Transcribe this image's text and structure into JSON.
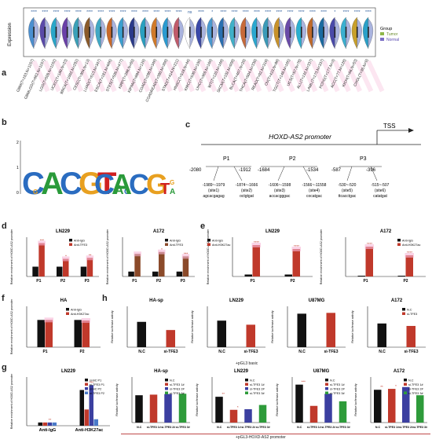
{
  "panel_labels": [
    "a",
    "b",
    "c",
    "d",
    "e",
    "f",
    "g",
    "h"
  ],
  "panel_a": {
    "ylabel": "Expression",
    "legend_title": "Group",
    "legend_items": [
      {
        "label": "Tumor",
        "color": "#8fb84a"
      },
      {
        "label": "Normal",
        "color": "#7b6fc6"
      }
    ],
    "categories": [
      "GBM(T=153,N=1157)",
      "GBMLGG(T=662,N=1157)",
      "LGG(T=509,N=1152)",
      "UCEC(T=180,N=23)",
      "BRCA(T=1092,N=292)",
      "CESC(T=304,N=13)",
      "LUAD(T=513,N=347)",
      "ESCA(T=181,N=666)",
      "STES(T=595,N=477)",
      "KIRP(T=288,N=60)",
      "KIPAN(T=884,N=129)",
      "COAD(T=288,N=349)",
      "COADREAD(T=380,N=359)",
      "STAD(T=414,N=211)",
      "HNSC(T=518,N=44)",
      "KIRC(T=530,N=100)",
      "LIHC(T=369,N=160)",
      "WT(T=120,N=168)",
      "SKCM(T=102,N=558)",
      "BLCA(T=407,N=28)",
      "THCA(T=504,N=338)",
      "READ(T=92,N=318)",
      "OV(T=419,N=88)",
      "TGCT(T=148,N=165)",
      "UCS(T=57,N=78)",
      "ALL(T=132,N=337)",
      "LAML(T=173,N=337)",
      "PCPG(T=177,N=3)",
      "ACC(T=77,N=128)",
      "KICH(T=66,N=53)",
      "CHOL(T=36,N=9)"
    ],
    "significance": [
      "****",
      "****",
      "****",
      "****",
      "****",
      "****",
      "****",
      "****",
      "****",
      "****",
      "****",
      "****",
      "****",
      "****",
      "ns",
      "****",
      "*",
      "****",
      "****",
      "****",
      "****",
      "****",
      "****",
      "****",
      "****",
      "****",
      "****",
      "*",
      "****",
      "****",
      "****"
    ],
    "violin_colors": [
      "#4a8fd0",
      "#5a4aa8",
      "#2aa7c9",
      "#6a3fa8",
      "#3aa0b8",
      "#8a5a2a",
      "#40a8c4",
      "#c96a2a",
      "#3a9fd0",
      "#2a3a8a",
      "#2aa0c0",
      "#d07a2a",
      "#2a9ad0",
      "#c05a6a",
      "#ffffff",
      "#3a48a8",
      "#4a9ad0",
      "#2a6fb0",
      "#40b0c8",
      "#c86a3a",
      "#2aa8d0",
      "#3a9ab8",
      "#c8922a",
      "#6a4aa8",
      "#2ab0d0",
      "#c06a2a",
      "#1a6aa0",
      "#4a4aa8",
      "#3ab0d0",
      "#c8a02a",
      "#2aa0c8"
    ]
  },
  "panel_b": {
    "motifs": [
      "CACGTGAC",
      "CACGTGAC"
    ],
    "yaxis": [
      "2",
      "1",
      "0"
    ]
  },
  "panel_c": {
    "title": "HOXD-AS2 promoter",
    "tss": "TSS",
    "regions": [
      {
        "name": "P1",
        "start": "-2080",
        "end": "-1912"
      },
      {
        "name": "P2",
        "start": "-1684",
        "end": "-1534"
      },
      {
        "name": "P3",
        "start": "-587",
        "end": "-396"
      }
    ],
    "sites": [
      {
        "range": "-1989~-1979",
        "name": "(site1)",
        "seq": "agcacgagag"
      },
      {
        "range": "-1874~-1666",
        "name": "(site2)",
        "seq": "octgtgat"
      },
      {
        "range": "-1606~-1598",
        "name": "(site3)",
        "seq": "accacgggac"
      },
      {
        "range": "-1566~-11558",
        "name": "(site4)",
        "seq": "cocatgac"
      },
      {
        "range": "-530~-520",
        "name": "(site5)",
        "seq": "ttcacctgac"
      },
      {
        "range": "-515~-507",
        "name": "(site6)",
        "seq": "catatgat"
      }
    ]
  },
  "panel_d": {
    "ylabel": "Relative enrichment of HOXD-AS2 promoter",
    "charts": [
      {
        "title": "LN229",
        "legend": [
          "Anti-IgG",
          "Anti-TFE3"
        ],
        "categories": [
          "P1",
          "P2",
          "P3"
        ],
        "series": [
          [
            1,
            1,
            1
          ],
          [
            3.4,
            1.8,
            1.9
          ]
        ],
        "sig": [
          "***",
          "*",
          "**"
        ],
        "ylim": [
          0,
          4
        ]
      },
      {
        "title": "A172",
        "legend": [
          "Anti-IgG",
          "Anti-TFE3"
        ],
        "categories": [
          "P1",
          "P2",
          "P3"
        ],
        "series": [
          [
            1,
            1,
            1
          ],
          [
            4.6,
            5.0,
            4.1
          ]
        ],
        "sig": [
          "",
          "*",
          "***"
        ],
        "ylim": [
          0,
          8
        ]
      }
    ]
  },
  "panel_e": {
    "ylabel": "Relative enrichment of HOXD-AS2 promoter",
    "charts": [
      {
        "title": "LN229",
        "legend": [
          "Anti-IgG",
          "Anti-H3K27ac"
        ],
        "categories": [
          "P1",
          "P2"
        ],
        "series": [
          [
            1,
            1
          ],
          [
            16,
            14
          ]
        ],
        "sig": [
          "****",
          "****"
        ],
        "ylim": [
          0,
          20
        ]
      },
      {
        "title": "A172",
        "legend": [
          "Anti-IgG",
          "Anti-H3K27ac"
        ],
        "categories": [
          "P1",
          "P2"
        ],
        "series": [
          [
            1,
            1
          ],
          [
            38,
            27
          ]
        ],
        "sig": [
          "****",
          "****"
        ],
        "ylim": [
          0,
          50
        ]
      }
    ]
  },
  "panel_f": {
    "title": "HA",
    "ylabel": "Relative enrichment of HOXD-AS2 promoter",
    "legend": [
      "Anti-IgG",
      "Anti-H3K27ac"
    ],
    "categories": [
      "P1",
      "P2"
    ],
    "series": [
      [
        1.0,
        1.0
      ],
      [
        1.0,
        0.98
      ]
    ],
    "ylim": [
      0,
      1.5
    ]
  },
  "panel_g": {
    "title": "LN229",
    "ylabel": "Relative enrichment of HOXD-AS2 promoter",
    "legend": [
      "si-NC P1",
      "si-TFE3 P1",
      "si-NC P2",
      "si-TFE3 P2"
    ],
    "categories": [
      "Anti-IgG",
      "Anti-H3K27ac"
    ],
    "series": [
      [
        1,
        11
      ],
      [
        1,
        5
      ],
      [
        1,
        12.5
      ],
      [
        1,
        2
      ]
    ],
    "sig": [
      "**",
      "***"
    ],
    "ylim": [
      0,
      15
    ]
  },
  "panel_h": {
    "ylabel": "Relative luciferase activity",
    "top_caption": "+pGL3 basic",
    "bottom_caption": "+pGL3-HOXD-AS2 promoter",
    "top_charts": [
      {
        "title": "HA-sp",
        "categories": [
          "N.C",
          "si-TFE3"
        ],
        "values": [
          0.62,
          0.42
        ],
        "ylim": [
          0,
          1.0
        ]
      },
      {
        "title": "LN229",
        "categories": [
          "N.C",
          "si-TFE3"
        ],
        "values": [
          0.65,
          0.55
        ],
        "ylim": [
          0,
          1.0
        ]
      },
      {
        "title": "U87MG",
        "categories": [
          "N.C",
          "si-TFE3"
        ],
        "values": [
          0.82,
          0.84
        ],
        "ylim": [
          0,
          1.0
        ]
      },
      {
        "title": "A172",
        "legend": [
          "N.C",
          "si-TFE3"
        ],
        "categories": [
          "N.C",
          "si-TFE3"
        ],
        "values": [
          0.58,
          0.52
        ],
        "ylim": [
          0,
          1.0
        ]
      }
    ],
    "bottom_charts": [
      {
        "title": "HA-sp",
        "legend": [
          "N.C",
          "si-TFE3 1#",
          "si-TFE3 2#",
          "si-TFE3 3#"
        ],
        "categories": [
          "N.C",
          "si-TFE3 1#",
          "si-TFE3 2#",
          "si-TFE3 3#"
        ],
        "values": [
          0.9,
          0.92,
          0.94,
          0.95
        ],
        "ylim": [
          0,
          1.5
        ]
      },
      {
        "title": "LN229",
        "legend": [
          "N.C",
          "si-TFE3 1#",
          "si-TFE3 2#",
          "si-TFE3 3#"
        ],
        "categories": [
          "N.C",
          "si-TFE3 1#",
          "si-TFE3 2#",
          "si-TFE3 3#"
        ],
        "values": [
          0.85,
          0.42,
          0.44,
          0.58
        ],
        "ylim": [
          0,
          1.5
        ],
        "sig": [
          "**",
          "*"
        ]
      },
      {
        "title": "U87MG",
        "legend": [
          "N.C",
          "si-TFE3 1#",
          "si-TFE3 2#",
          "si-TFE3 3#"
        ],
        "categories": [
          "N.C",
          "si-TFE3 1#",
          "si-TFE3 2#",
          "si-TFE3 3#"
        ],
        "values": [
          1.25,
          0.55,
          0.95,
          0.7
        ],
        "ylim": [
          0,
          1.5
        ],
        "sig": [
          "***"
        ]
      },
      {
        "title": "A172",
        "legend": [
          "N.C",
          "si-TFE3 1#",
          "si-TFE3 2#",
          "si-TFE3 3#"
        ],
        "categories": [
          "N.C",
          "si-TFE3 1#",
          "si-TFE3 2#",
          "si-TFE3 3#"
        ],
        "values": [
          0.72,
          0.74,
          0.78,
          0.6
        ],
        "ylim": [
          0,
          1.0
        ],
        "sig": [
          "**",
          "*"
        ]
      }
    ],
    "colors": [
      "#111111",
      "#c0392b",
      "#3b3fa0",
      "#2e9b3a"
    ]
  },
  "colors": {
    "bar_black": "#111111",
    "bar_red": "#c0392b",
    "bar_brown": "#8b4a2a",
    "bar_blue": "#3b3fa0",
    "pink_glow": "#f7b6d6"
  }
}
